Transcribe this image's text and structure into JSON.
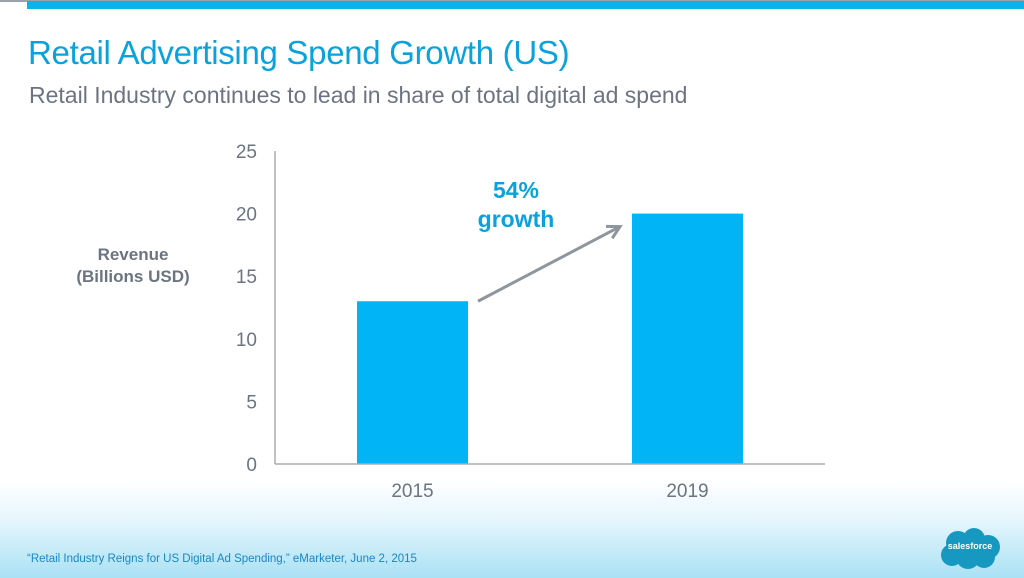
{
  "slide": {
    "title": "Retail Advertising Spend Growth (US)",
    "subtitle": "Retail Industry continues to lead in share of total digital ad spend",
    "footnote": "“Retail Industry Reigns for US Digital Ad Spending,” eMarketer, June 2, 2015",
    "logo_text": "salesforce",
    "colors": {
      "accent": "#0aa2dc",
      "bar": "#00b4f6",
      "text_gray": "#6b7480",
      "axis": "#a8acb0",
      "arrow": "#8e959c"
    }
  },
  "chart_data": {
    "type": "bar",
    "title": "Retail Advertising Spend Growth (US)",
    "subtitle": "Retail Industry continues to lead in share of total digital ad spend",
    "xlabel": "",
    "ylabel_lines": [
      "Revenue",
      "(Billions USD)"
    ],
    "ylabel": "Revenue (Billions USD)",
    "categories": [
      "2015",
      "2019"
    ],
    "values": [
      13,
      20
    ],
    "ylim": [
      0,
      25
    ],
    "yticks": [
      0,
      5,
      10,
      15,
      20,
      25
    ],
    "ytick_labels": [
      "0",
      "5",
      "10",
      "15",
      "20",
      "25"
    ],
    "grid": false,
    "legend": "none",
    "annotation": {
      "lines": [
        "54%",
        "growth"
      ],
      "text": "54% growth",
      "arrow_from": "2015",
      "arrow_to": "2019"
    }
  }
}
